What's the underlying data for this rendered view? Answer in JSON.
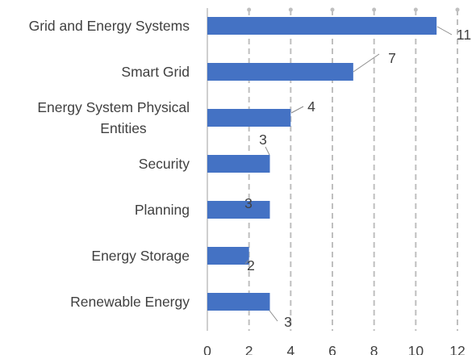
{
  "chart_data": {
    "type": "bar",
    "orientation": "horizontal",
    "categories": [
      "Grid and Energy Systems",
      "Smart Grid",
      "Energy System Physical Entities",
      "Security",
      "Planning",
      "Energy Storage",
      "Renewable Energy"
    ],
    "values": [
      11,
      7,
      4,
      3,
      3,
      2,
      3
    ],
    "title": "",
    "xlabel": "",
    "ylabel": "",
    "xlim": [
      0,
      12
    ],
    "xticks": [
      0,
      2,
      4,
      6,
      8,
      10,
      12
    ],
    "grid": "vertical dashed",
    "legend": "none",
    "bar_color": "#4472c4",
    "grid_color": "#bfbfbf",
    "text_color": "#404040"
  }
}
